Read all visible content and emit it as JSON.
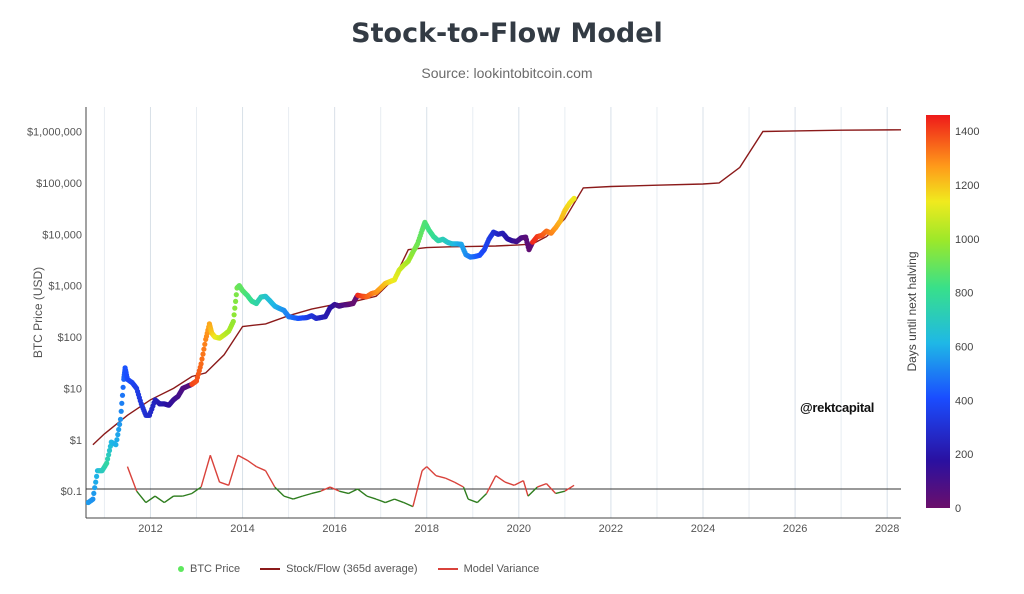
{
  "header": {
    "title": "Stock-to-Flow Model",
    "subtitle": "Source: lookintobitcoin.com"
  },
  "watermark": "@rektcapital",
  "colors": {
    "btc_price_legend": "#5ee85e",
    "stock_flow": "#8b1a1a",
    "variance_above": "#d9423b",
    "variance_below": "#2e7d1e",
    "variance_baseline": "#333333"
  },
  "chart_data": {
    "type": "scatter",
    "title": "Stock-to-Flow Model",
    "ylabel": "BTC Price (USD)",
    "yscale": "log",
    "ylim": [
      0.03,
      3000000
    ],
    "xlim": [
      2010.6,
      2028.3
    ],
    "x_ticks": [
      2012,
      2014,
      2016,
      2018,
      2020,
      2022,
      2024,
      2026,
      2028
    ],
    "y_ticks": [
      {
        "value": 1000000,
        "label": "$1,000,000"
      },
      {
        "value": 100000,
        "label": "$100,000"
      },
      {
        "value": 10000,
        "label": "$10,000"
      },
      {
        "value": 1000,
        "label": "$1,000"
      },
      {
        "value": 100,
        "label": "$100"
      },
      {
        "value": 10,
        "label": "$10"
      },
      {
        "value": 1,
        "label": "$1"
      },
      {
        "value": 0.1,
        "label": "$0.1"
      }
    ],
    "grid": true,
    "legend_position": "bottom",
    "colorbar": {
      "label": "Days until next halving",
      "range": [
        0,
        1460
      ],
      "ticks": [
        0,
        200,
        400,
        600,
        800,
        1000,
        1200,
        1400
      ]
    },
    "series": [
      {
        "name": "BTC Price",
        "x": [
          2010.65,
          2010.75,
          2010.85,
          2010.95,
          2011.05,
          2011.15,
          2011.25,
          2011.35,
          2011.42,
          2011.45,
          2011.5,
          2011.6,
          2011.7,
          2011.8,
          2011.9,
          2011.98,
          2012.1,
          2012.2,
          2012.3,
          2012.4,
          2012.5,
          2012.6,
          2012.7,
          2012.8,
          2012.9,
          2013.0,
          2013.1,
          2013.2,
          2013.28,
          2013.33,
          2013.4,
          2013.5,
          2013.6,
          2013.7,
          2013.8,
          2013.88,
          2013.93,
          2014.0,
          2014.1,
          2014.2,
          2014.3,
          2014.4,
          2014.5,
          2014.6,
          2014.7,
          2014.8,
          2014.9,
          2015.0,
          2015.1,
          2015.2,
          2015.3,
          2015.4,
          2015.5,
          2015.6,
          2015.7,
          2015.8,
          2015.9,
          2016.0,
          2016.1,
          2016.2,
          2016.3,
          2016.4,
          2016.5,
          2016.6,
          2016.7,
          2016.8,
          2016.9,
          2017.0,
          2017.1,
          2017.2,
          2017.3,
          2017.4,
          2017.5,
          2017.6,
          2017.7,
          2017.8,
          2017.9,
          2017.96,
          2018.05,
          2018.15,
          2018.25,
          2018.35,
          2018.45,
          2018.55,
          2018.65,
          2018.75,
          2018.85,
          2018.95,
          2019.05,
          2019.15,
          2019.25,
          2019.35,
          2019.45,
          2019.55,
          2019.65,
          2019.75,
          2019.85,
          2019.95,
          2020.05,
          2020.15,
          2020.22,
          2020.3,
          2020.4,
          2020.5,
          2020.6,
          2020.7,
          2020.8,
          2020.9,
          2021.0,
          2021.1,
          2021.2
        ],
        "y": [
          0.06,
          0.07,
          0.25,
          0.25,
          0.35,
          0.9,
          0.8,
          2.5,
          15,
          25,
          15,
          13,
          10,
          5,
          3,
          3,
          6,
          5,
          5,
          4.7,
          6,
          7,
          10,
          11,
          12,
          14,
          30,
          90,
          180,
          120,
          100,
          95,
          110,
          130,
          200,
          900,
          1000,
          800,
          650,
          500,
          450,
          600,
          620,
          500,
          400,
          360,
          330,
          250,
          240,
          230,
          235,
          240,
          260,
          230,
          240,
          250,
          370,
          430,
          400,
          420,
          430,
          450,
          650,
          620,
          610,
          700,
          740,
          900,
          1100,
          1200,
          1300,
          2000,
          2500,
          3000,
          4500,
          6500,
          12000,
          17000,
          12000,
          9000,
          7500,
          8000,
          7000,
          6500,
          6500,
          6400,
          4000,
          3600,
          3700,
          3900,
          5000,
          8000,
          11000,
          10000,
          10500,
          8200,
          7500,
          7200,
          8500,
          8800,
          5000,
          7000,
          9000,
          9500,
          11500,
          10500,
          13500,
          18000,
          29000,
          40000,
          50000
        ],
        "days": [
          560,
          540,
          620,
          700,
          760,
          620,
          600,
          540,
          450,
          420,
          400,
          380,
          350,
          320,
          300,
          280,
          250,
          220,
          200,
          170,
          140,
          110,
          80,
          60,
          1400,
          1380,
          1340,
          1300,
          1250,
          1200,
          1150,
          1100,
          1060,
          1020,
          980,
          930,
          900,
          880,
          840,
          800,
          760,
          720,
          680,
          640,
          610,
          580,
          540,
          500,
          470,
          440,
          400,
          360,
          320,
          290,
          250,
          220,
          190,
          150,
          110,
          80,
          50,
          20,
          1440,
          1400,
          1360,
          1330,
          1290,
          1250,
          1210,
          1170,
          1130,
          1090,
          1050,
          1010,
          960,
          920,
          880,
          860,
          830,
          800,
          760,
          720,
          690,
          650,
          610,
          580,
          540,
          500,
          460,
          420,
          380,
          350,
          310,
          270,
          230,
          200,
          160,
          120,
          90,
          50,
          30,
          1440,
          1420,
          1380,
          1340,
          1310,
          1270,
          1230,
          1200,
          1160,
          1140
        ]
      },
      {
        "name": "Stock/Flow (365d average)",
        "x": [
          2010.75,
          2011.0,
          2011.5,
          2012.0,
          2012.5,
          2012.9,
          2013.2,
          2013.6,
          2014.0,
          2014.5,
          2015.0,
          2015.5,
          2016.0,
          2016.5,
          2016.9,
          2017.3,
          2017.6,
          2018.0,
          2018.5,
          2019.0,
          2019.5,
          2020.0,
          2020.3,
          2020.6,
          2021.0,
          2021.4,
          2022.0,
          2023.0,
          2024.0,
          2024.35,
          2024.8,
          2025.3,
          2026.0,
          2027.0,
          2028.3
        ],
        "y": [
          0.8,
          1.3,
          3,
          6,
          10,
          17,
          20,
          45,
          160,
          180,
          260,
          350,
          430,
          510,
          620,
          1400,
          5000,
          5500,
          5700,
          5800,
          5900,
          6200,
          6500,
          9000,
          20000,
          80000,
          85000,
          90000,
          95000,
          100000,
          200000,
          1000000,
          1030000,
          1060000,
          1080000
        ]
      },
      {
        "name": "Model Variance",
        "baseline": 0.11,
        "x": [
          2011.5,
          2011.7,
          2011.9,
          2012.1,
          2012.3,
          2012.5,
          2012.7,
          2012.9,
          2013.1,
          2013.3,
          2013.5,
          2013.7,
          2013.9,
          2014.1,
          2014.3,
          2014.5,
          2014.7,
          2014.9,
          2015.1,
          2015.3,
          2015.5,
          2015.7,
          2015.9,
          2016.1,
          2016.3,
          2016.5,
          2016.7,
          2016.9,
          2017.1,
          2017.3,
          2017.5,
          2017.7,
          2017.9,
          2018.0,
          2018.2,
          2018.4,
          2018.6,
          2018.8,
          2018.9,
          2019.1,
          2019.3,
          2019.5,
          2019.7,
          2019.9,
          2020.1,
          2020.2,
          2020.4,
          2020.6,
          2020.8,
          2021.0,
          2021.2
        ],
        "y": [
          0.3,
          0.1,
          0.06,
          0.08,
          0.06,
          0.08,
          0.08,
          0.09,
          0.12,
          0.5,
          0.15,
          0.13,
          0.5,
          0.4,
          0.3,
          0.25,
          0.12,
          0.08,
          0.07,
          0.08,
          0.09,
          0.1,
          0.12,
          0.1,
          0.09,
          0.11,
          0.08,
          0.07,
          0.06,
          0.07,
          0.06,
          0.05,
          0.25,
          0.3,
          0.2,
          0.18,
          0.15,
          0.12,
          0.07,
          0.06,
          0.09,
          0.2,
          0.15,
          0.13,
          0.16,
          0.08,
          0.12,
          0.14,
          0.09,
          0.1,
          0.13
        ]
      }
    ]
  }
}
